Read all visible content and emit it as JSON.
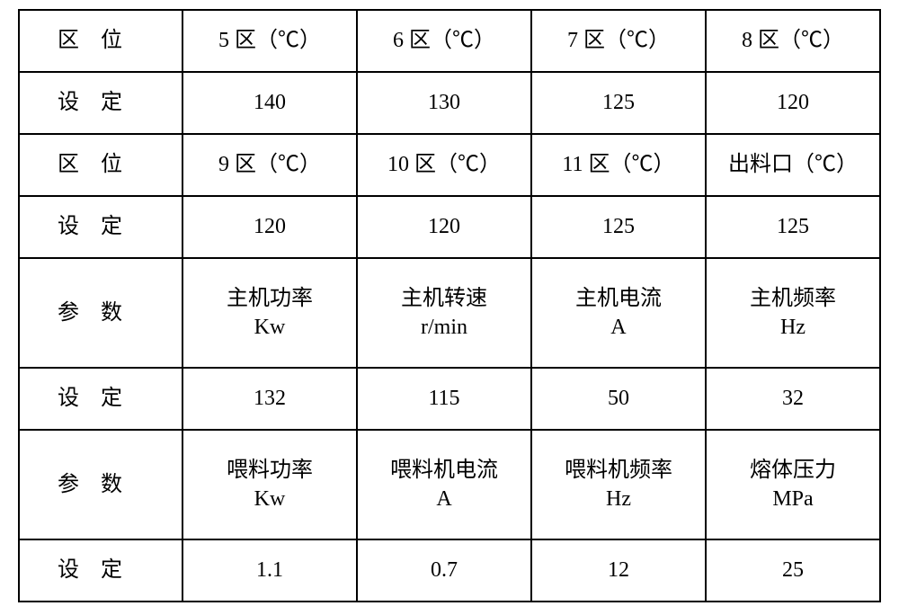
{
  "table": {
    "column_widths_pct": [
      19,
      20.25,
      20.25,
      20.25,
      20.25
    ],
    "border_color": "#000000",
    "background_color": "#ffffff",
    "font_family": "SimSun",
    "font_size_pt": 18,
    "rows": [
      {
        "label": "区位",
        "spaced": true,
        "cells": [
          "5 区（℃）",
          "6 区（℃）",
          "7 区（℃）",
          "8 区（℃）"
        ]
      },
      {
        "label": "设定",
        "spaced": true,
        "cells": [
          "140",
          "130",
          "125",
          "120"
        ]
      },
      {
        "label": "区位",
        "spaced": true,
        "cells": [
          "9 区（℃）",
          "10 区（℃）",
          "11 区（℃）",
          "出料口（℃）"
        ]
      },
      {
        "label": "设定",
        "spaced": true,
        "cells": [
          "120",
          "120",
          "125",
          "125"
        ]
      },
      {
        "label": "参数",
        "spaced": true,
        "cells": [
          "主机功率\nKw",
          "主机转速\nr/min",
          "主机电流\nA",
          "主机频率\nHz"
        ]
      },
      {
        "label": "设定",
        "spaced": true,
        "cells": [
          "132",
          "115",
          "50",
          "32"
        ]
      },
      {
        "label": "参数",
        "spaced": true,
        "cells": [
          "喂料功率\nKw",
          "喂料机电流\nA",
          "喂料机频率\nHz",
          "熔体压力\nMPa"
        ]
      },
      {
        "label": "设定",
        "spaced": true,
        "cells": [
          "1.1",
          "0.7",
          "12",
          "25"
        ]
      }
    ]
  }
}
